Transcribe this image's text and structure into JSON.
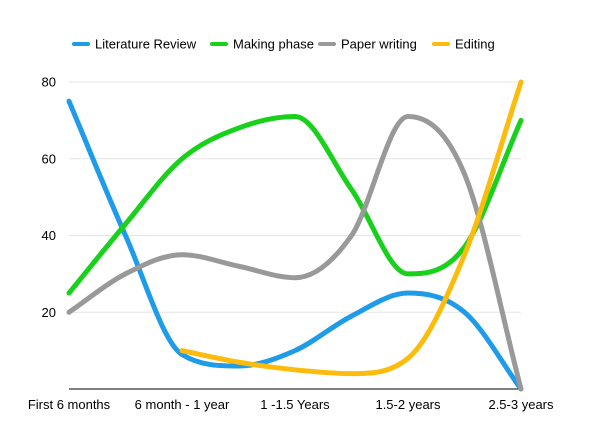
{
  "chart_data": {
    "type": "line",
    "smooth": true,
    "title": "",
    "xlabel": "",
    "ylabel": "",
    "categories": [
      "First 6 months",
      "6 month - 1 year",
      "1 -1.5 Years",
      "1.5-2 years",
      "2.5-3 years"
    ],
    "y_ticks": [
      "20",
      "40",
      "60",
      "80"
    ],
    "ylim": [
      0,
      80
    ],
    "grid": true,
    "legend_position": "top",
    "series": [
      {
        "name": "Literature Review",
        "color": "#1e9be9",
        "points": [
          [
            0,
            75
          ],
          [
            0.5,
            40
          ],
          [
            1,
            9
          ],
          [
            1.5,
            6
          ],
          [
            2,
            10
          ],
          [
            2.5,
            19
          ],
          [
            3,
            25
          ],
          [
            3.5,
            20
          ],
          [
            4,
            0
          ]
        ]
      },
      {
        "name": "Making phase",
        "color": "#18d11b",
        "points": [
          [
            0,
            25
          ],
          [
            0.5,
            43
          ],
          [
            1,
            60
          ],
          [
            1.5,
            68
          ],
          [
            2,
            71
          ],
          [
            2.5,
            52
          ],
          [
            3,
            30
          ],
          [
            3.5,
            37
          ],
          [
            4,
            70
          ]
        ]
      },
      {
        "name": "Paper writing",
        "color": "#999999",
        "points": [
          [
            0,
            20
          ],
          [
            0.5,
            30
          ],
          [
            1,
            35
          ],
          [
            1.5,
            32
          ],
          [
            2,
            29
          ],
          [
            2.5,
            40
          ],
          [
            3,
            71
          ],
          [
            3.5,
            56
          ],
          [
            4,
            0
          ]
        ]
      },
      {
        "name": "Editing",
        "color": "#fdbb0b",
        "points": [
          [
            1,
            10
          ],
          [
            1.5,
            7
          ],
          [
            2,
            5
          ],
          [
            2.5,
            4
          ],
          [
            3,
            8
          ],
          [
            3.5,
            35
          ],
          [
            4,
            80
          ]
        ]
      }
    ]
  }
}
